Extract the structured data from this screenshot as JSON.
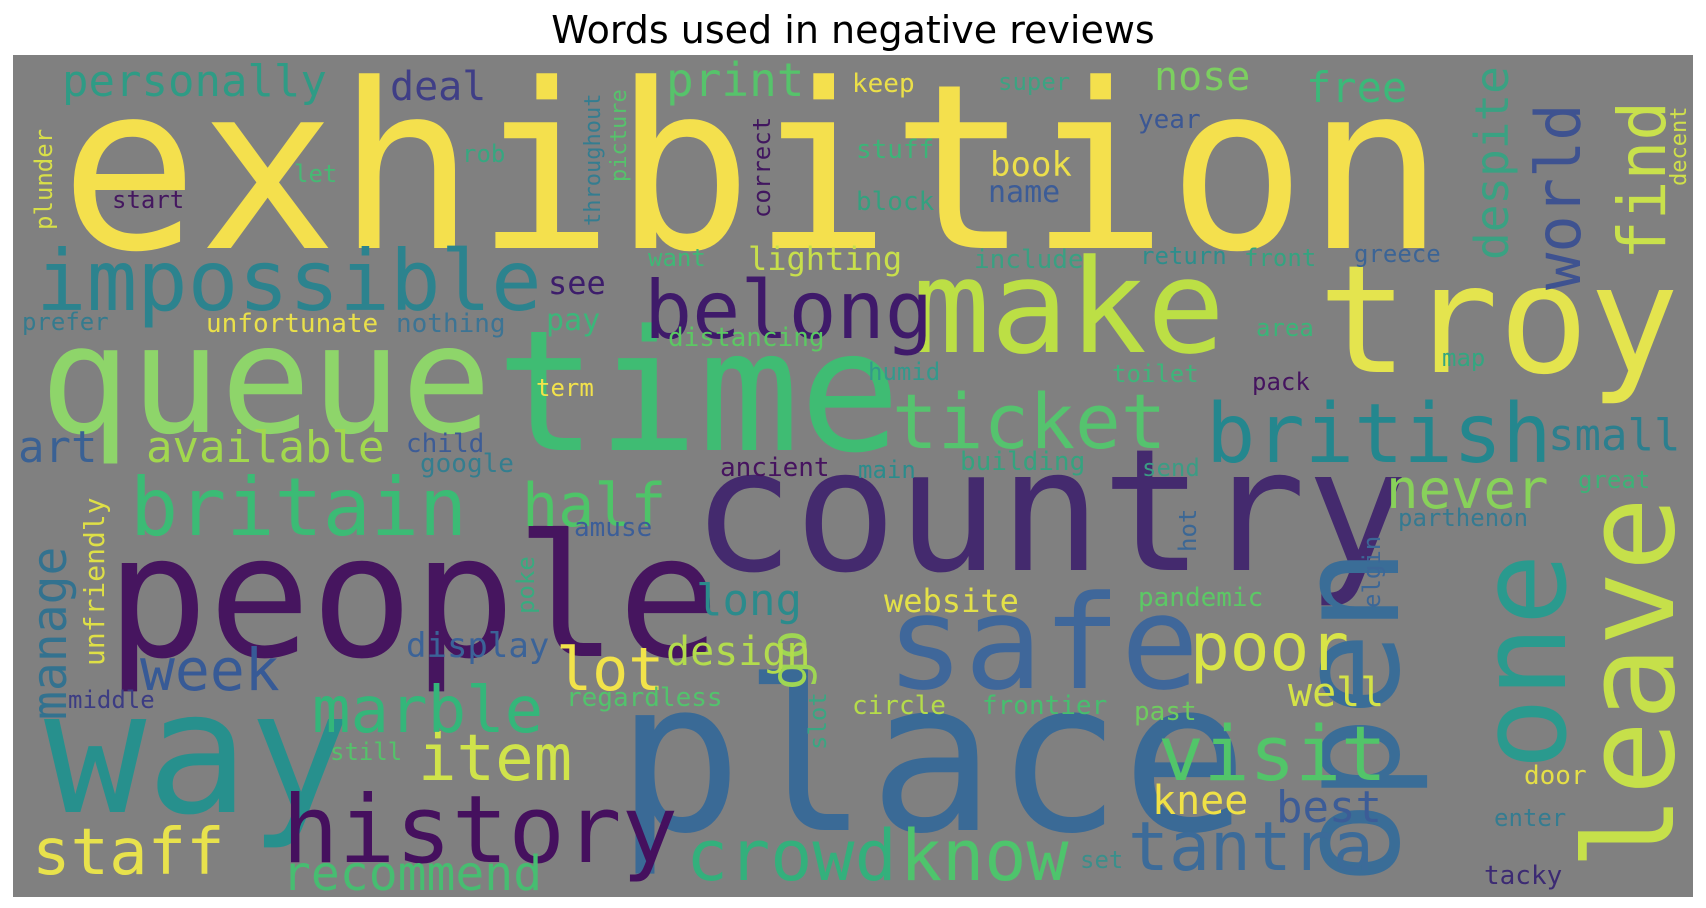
{
  "chart_data": {
    "type": "wordcloud",
    "title": "Words used in negative reviews",
    "background": "#808080",
    "colormap": "viridis",
    "words": [
      {
        "text": "exhibition",
        "rank": 1,
        "color": "#f4e04d"
      },
      {
        "text": "make",
        "rank": 2,
        "color": "#bcdf45"
      },
      {
        "text": "troy",
        "rank": 3,
        "color": "#e4e44e"
      },
      {
        "text": "queue",
        "rank": 4,
        "color": "#8ed56a"
      },
      {
        "text": "time",
        "rank": 5,
        "color": "#3fbc73"
      },
      {
        "text": "country",
        "rank": 6,
        "color": "#442a6e"
      },
      {
        "text": "place",
        "rank": 7,
        "color": "#3a6a96"
      },
      {
        "text": "people",
        "rank": 8,
        "color": "#46155f"
      },
      {
        "text": "way",
        "rank": 9,
        "color": "#27908d"
      },
      {
        "text": "open",
        "rank": 10,
        "color": "#3a6d97"
      },
      {
        "text": "leave",
        "rank": 11,
        "color": "#c6e04a"
      },
      {
        "text": "safe",
        "rank": 12,
        "color": "#3f679a"
      },
      {
        "text": "one",
        "rank": 13,
        "color": "#2a9a8e"
      },
      {
        "text": "impossible",
        "rank": 14,
        "color": "#2c838e"
      },
      {
        "text": "ticket",
        "rank": 15,
        "color": "#55c36e"
      },
      {
        "text": "history",
        "rank": 16,
        "color": "#45105e"
      },
      {
        "text": "british",
        "rank": 17,
        "color": "#24878e"
      },
      {
        "text": "belong",
        "rank": 18,
        "color": "#3f1a6a"
      },
      {
        "text": "britain",
        "rank": 19,
        "color": "#3bbb75"
      },
      {
        "text": "find",
        "rank": 20,
        "color": "#c9e14c"
      },
      {
        "text": "visit",
        "rank": 21,
        "color": "#52c569"
      },
      {
        "text": "item",
        "rank": 22,
        "color": "#d0e34b"
      },
      {
        "text": "crowd",
        "rank": 23,
        "color": "#33b07c"
      },
      {
        "text": "know",
        "rank": 24,
        "color": "#4ec46c"
      },
      {
        "text": "tantra",
        "rank": 25,
        "color": "#3c6b99"
      },
      {
        "text": "staff",
        "rank": 26,
        "color": "#e8e24c"
      },
      {
        "text": "world",
        "rank": 27,
        "color": "#3e5290"
      },
      {
        "text": "half",
        "rank": 28,
        "color": "#4ec468"
      },
      {
        "text": "poor",
        "rank": 29,
        "color": "#d9e447"
      },
      {
        "text": "marble",
        "rank": 30,
        "color": "#34b67a"
      },
      {
        "text": "week",
        "rank": 31,
        "color": "#375a96"
      },
      {
        "text": "lot",
        "rank": 32,
        "color": "#f2e34a"
      },
      {
        "text": "never",
        "rank": 33,
        "color": "#88d15a"
      },
      {
        "text": "despite",
        "rank": 34,
        "color": "#3aa182"
      },
      {
        "text": "go",
        "rank": 35,
        "color": "#9fd653"
      },
      {
        "text": "manage",
        "rank": 36,
        "color": "#33728f"
      },
      {
        "text": "available",
        "rank": 37,
        "color": "#a2d84e"
      },
      {
        "text": "recommend",
        "rank": 38,
        "color": "#47bd71"
      },
      {
        "text": "small",
        "rank": 39,
        "color": "#2c7f8e"
      },
      {
        "text": "personally",
        "rank": 40,
        "color": "#2f9b85"
      },
      {
        "text": "print",
        "rank": 41,
        "color": "#56c36b"
      },
      {
        "text": "deal",
        "rank": 42,
        "color": "#3f3e86"
      },
      {
        "text": "nose",
        "rank": 43,
        "color": "#7ccf60"
      },
      {
        "text": "free",
        "rank": 44,
        "color": "#3bb979"
      },
      {
        "text": "long",
        "rank": 45,
        "color": "#2b8b8c"
      },
      {
        "text": "design",
        "rank": 46,
        "color": "#b3dc4d"
      },
      {
        "text": "art",
        "rank": 47,
        "color": "#3a6194"
      },
      {
        "text": "knee",
        "rank": 48,
        "color": "#f0e146"
      },
      {
        "text": "best",
        "rank": 49,
        "color": "#3c5c97"
      },
      {
        "text": "well",
        "rank": 50,
        "color": "#d4e247"
      },
      {
        "text": "lighting",
        "rank": 51,
        "color": "#c8df4b"
      },
      {
        "text": "website",
        "rank": 52,
        "color": "#e3e048"
      },
      {
        "text": "see",
        "rank": 53,
        "color": "#3d1d6b"
      },
      {
        "text": "book",
        "rank": 54,
        "color": "#ecdf4b"
      },
      {
        "text": "name",
        "rank": 55,
        "color": "#3c5c97"
      },
      {
        "text": "display",
        "rank": 56,
        "color": "#3b6398"
      },
      {
        "text": "unfortunate",
        "rank": 57,
        "color": "#eae04a"
      },
      {
        "text": "distancing",
        "rank": 58,
        "color": "#5cc863"
      },
      {
        "text": "pay",
        "rank": 59,
        "color": "#3bb77a"
      },
      {
        "text": "term",
        "rank": 60,
        "color": "#f2e24c"
      },
      {
        "text": "nothing",
        "rank": 61,
        "color": "#3c7494"
      },
      {
        "text": "prefer",
        "rank": 62,
        "color": "#357b8e"
      },
      {
        "text": "unfriendly",
        "rank": 63,
        "color": "#dedf46"
      },
      {
        "text": "child",
        "rank": 64,
        "color": "#3d5c96"
      },
      {
        "text": "google",
        "rank": 65,
        "color": "#347e8f"
      },
      {
        "text": "ancient",
        "rank": 66,
        "color": "#46135f"
      },
      {
        "text": "amuse",
        "rank": 67,
        "color": "#3c5e98"
      },
      {
        "text": "main",
        "rank": 68,
        "color": "#2b8c8c"
      },
      {
        "text": "building",
        "rank": 69,
        "color": "#35a37f"
      },
      {
        "text": "send",
        "rank": 70,
        "color": "#3b9c84"
      },
      {
        "text": "great",
        "rank": 71,
        "color": "#3cb277"
      },
      {
        "text": "parthenon",
        "rank": 72,
        "color": "#357a91"
      },
      {
        "text": "pandemic",
        "rank": 73,
        "color": "#5cc865"
      },
      {
        "text": "elgin",
        "rank": 74,
        "color": "#3c6797"
      },
      {
        "text": "hot",
        "rank": 75,
        "color": "#3b6795"
      },
      {
        "text": "poke",
        "rank": 76,
        "color": "#38ab7f"
      },
      {
        "text": "middle",
        "rank": 77,
        "color": "#3c3c83"
      },
      {
        "text": "regardless",
        "rank": 78,
        "color": "#52c36c"
      },
      {
        "text": "circle",
        "rank": 79,
        "color": "#b5dc4a"
      },
      {
        "text": "frontier",
        "rank": 80,
        "color": "#47be6f"
      },
      {
        "text": "past",
        "rank": 81,
        "color": "#6ecc5e"
      },
      {
        "text": "slot",
        "rank": 82,
        "color": "#3aa682"
      },
      {
        "text": "still",
        "rank": 83,
        "color": "#54c26a"
      },
      {
        "text": "set",
        "rank": 84,
        "color": "#3a8f8b"
      },
      {
        "text": "door",
        "rank": 85,
        "color": "#e5df47"
      },
      {
        "text": "enter",
        "rank": 86,
        "color": "#357c90"
      },
      {
        "text": "tacky",
        "rank": 87,
        "color": "#3c2a73"
      },
      {
        "text": "keep",
        "rank": 88,
        "color": "#ece048"
      },
      {
        "text": "super",
        "rank": 89,
        "color": "#3ca382"
      },
      {
        "text": "year",
        "rank": 90,
        "color": "#3b5794"
      },
      {
        "text": "stuff",
        "rank": 91,
        "color": "#3cb478"
      },
      {
        "text": "block",
        "rank": 92,
        "color": "#34a17f"
      },
      {
        "text": "rob",
        "rank": 93,
        "color": "#36a780"
      },
      {
        "text": "let",
        "rank": 94,
        "color": "#46b974"
      },
      {
        "text": "start",
        "rank": 95,
        "color": "#44175f"
      },
      {
        "text": "plunder",
        "rank": 96,
        "color": "#d8df48"
      },
      {
        "text": "throughout",
        "rank": 97,
        "color": "#347d90"
      },
      {
        "text": "picture",
        "rank": 98,
        "color": "#55c36b"
      },
      {
        "text": "correct",
        "rank": 99,
        "color": "#41165f"
      },
      {
        "text": "want",
        "rank": 100,
        "color": "#3fb876"
      },
      {
        "text": "include",
        "rank": 101,
        "color": "#3aa082"
      },
      {
        "text": "return",
        "rank": 102,
        "color": "#2d8e8c"
      },
      {
        "text": "front",
        "rank": 103,
        "color": "#34a380"
      },
      {
        "text": "greece",
        "rank": 104,
        "color": "#3b6496"
      },
      {
        "text": "area",
        "rank": 105,
        "color": "#3ab478"
      },
      {
        "text": "map",
        "rank": 106,
        "color": "#33a680"
      },
      {
        "text": "toilet",
        "rank": 107,
        "color": "#3eb57a"
      },
      {
        "text": "humid",
        "rank": 108,
        "color": "#33998c"
      },
      {
        "text": "pack",
        "rank": 109,
        "color": "#45135f"
      },
      {
        "text": "decent",
        "rank": 110,
        "color": "#d0e04a"
      }
    ]
  }
}
